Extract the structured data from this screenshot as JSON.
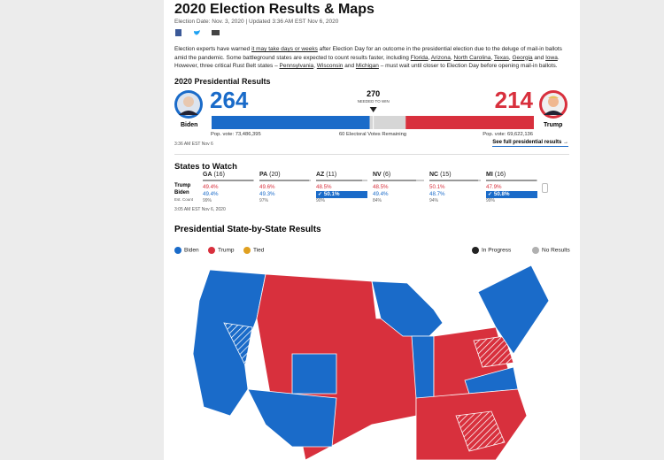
{
  "header": {
    "title": "2020 Election Results & Maps",
    "dateline": "Election Date: Nov. 3, 2020 | Updated 3:36 AM EST Nov 6, 2020"
  },
  "intro": [
    {
      "text": "Election experts have warned "
    },
    {
      "text": "it may take days or weeks",
      "link": true
    },
    {
      "text": " after Election Day for an outcome in the presidential election due to the deluge of mail-in ballots amid the pandemic. Some battleground states are expected to count results faster, including "
    },
    {
      "text": "Florida",
      "link": true
    },
    {
      "text": ", "
    },
    {
      "text": "Arizona",
      "link": true
    },
    {
      "text": ", "
    },
    {
      "text": "North Carolina",
      "link": true
    },
    {
      "text": ", "
    },
    {
      "text": "Texas",
      "link": true
    },
    {
      "text": ", "
    },
    {
      "text": "Georgia",
      "link": true
    },
    {
      "text": " and "
    },
    {
      "text": "Iowa",
      "link": true
    },
    {
      "text": ". However, three critical Rust Belt states – "
    },
    {
      "text": "Pennsylvania",
      "link": true
    },
    {
      "text": ", "
    },
    {
      "text": "Wisconsin",
      "link": true
    },
    {
      "text": " and "
    },
    {
      "text": "Michigan",
      "link": true
    },
    {
      "text": " – must wait until closer to Election Day before opening mail-in ballots."
    }
  ],
  "results": {
    "title": "2020 Presidential Results",
    "biden": {
      "name": "Biden",
      "votes": 264,
      "pop": "Pop. vote: 73,486,395",
      "color": "#1a6bc9"
    },
    "trump": {
      "name": "Trump",
      "votes": 214,
      "pop": "Pop. vote: 69,622,136",
      "color": "#d8303d"
    },
    "needed": 270,
    "needed_label": "NEEDED TO WIN",
    "remaining": 60,
    "remaining_label": "Electoral Votes Remaining",
    "timestamp": "3:36 AM EST Nov 6",
    "link": "See full presidential results"
  },
  "watch": {
    "title": "States to Watch",
    "row_labels": [
      "Trump",
      "Biden",
      "Est. Count"
    ],
    "states": [
      {
        "state": "GA",
        "ev": "(16)",
        "trump": "49.4%",
        "biden": "49.4%",
        "count": "99%"
      },
      {
        "state": "PA",
        "ev": "(20)",
        "trump": "49.6%",
        "biden": "49.3%",
        "count": "97%"
      },
      {
        "state": "AZ",
        "ev": "(11)",
        "trump": "48.5%",
        "biden": "50.1%",
        "count": "90%",
        "leader": "biden"
      },
      {
        "state": "NV",
        "ev": "(6)",
        "trump": "48.5%",
        "biden": "49.4%",
        "count": "84%"
      },
      {
        "state": "NC",
        "ev": "(15)",
        "trump": "50.1%",
        "biden": "48.7%",
        "count": "94%"
      },
      {
        "state": "MI",
        "ev": "(16)",
        "trump": "47.9%",
        "biden": "50.8%",
        "count": "99%",
        "leader": "biden"
      }
    ],
    "timestamp": "3:05 AM EST Nov 6, 2020"
  },
  "map": {
    "title": "Presidential State-by-State Results",
    "legend": [
      {
        "name": "Biden",
        "color": "#1a6bc9"
      },
      {
        "name": "Trump",
        "color": "#d8303d"
      },
      {
        "name": "Tied",
        "color": "#e0a020"
      },
      {
        "name": "In Progress",
        "color": "#222222"
      },
      {
        "name": "No Results",
        "color": "#b0b0b0"
      }
    ]
  }
}
